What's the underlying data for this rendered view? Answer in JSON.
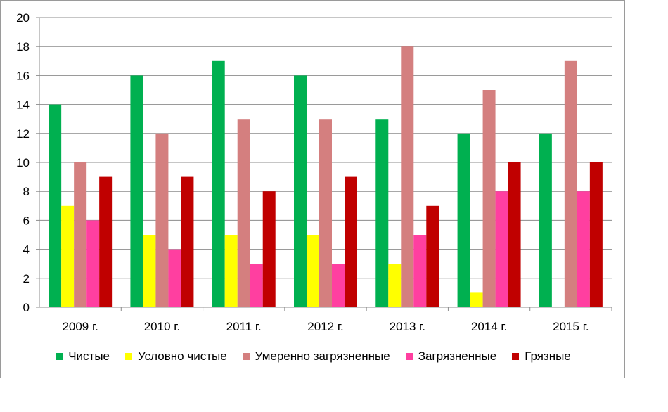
{
  "chart_data": {
    "type": "bar",
    "categories": [
      "2009 г.",
      "2010 г.",
      "2011 г.",
      "2012 г.",
      "2013 г.",
      "2014 г.",
      "2015 г."
    ],
    "series": [
      {
        "name": "Чистые",
        "color": "#00b050",
        "values": [
          14,
          16,
          17,
          16,
          13,
          12,
          12
        ]
      },
      {
        "name": "Условно чистые",
        "color": "#ffff00",
        "values": [
          7,
          5,
          5,
          5,
          3,
          1,
          0
        ]
      },
      {
        "name": "Умеренно загрязненные",
        "color": "#d47f7f",
        "values": [
          10,
          12,
          13,
          13,
          18,
          15,
          17
        ]
      },
      {
        "name": "Загрязненные",
        "color": "#ff3fa0",
        "values": [
          6,
          4,
          3,
          3,
          5,
          8,
          8
        ]
      },
      {
        "name": "Грязные",
        "color": "#c00000",
        "values": [
          9,
          9,
          8,
          9,
          7,
          10,
          10
        ]
      }
    ],
    "ylim": [
      0,
      20
    ],
    "yticks": [
      0,
      2,
      4,
      6,
      8,
      10,
      12,
      14,
      16,
      18,
      20
    ],
    "grid": true,
    "legend": "bottom"
  }
}
